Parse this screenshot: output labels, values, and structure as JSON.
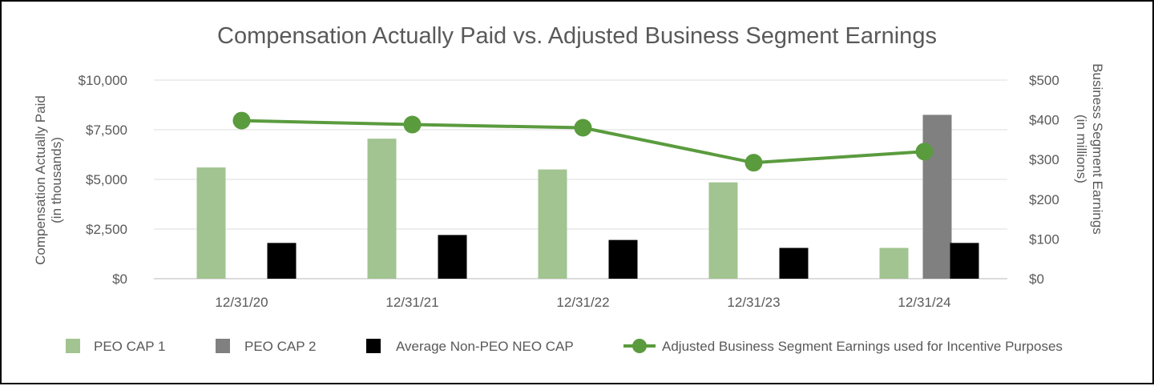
{
  "chart_data": {
    "type": "bar+line",
    "title": "Compensation Actually Paid vs. Adjusted Business Segment Earnings",
    "categories": [
      "12/31/20",
      "12/31/21",
      "12/31/22",
      "12/31/23",
      "12/31/24"
    ],
    "y_left": {
      "label_line1": "Compensation Actually Paid",
      "label_line2": "(in thousands)",
      "range": [
        0,
        10000
      ],
      "ticks": [
        0,
        2500,
        5000,
        7500,
        10000
      ],
      "tick_labels": [
        "$0",
        "$2,500",
        "$5,000",
        "$7,500",
        "$10,000"
      ]
    },
    "y_right": {
      "label_line1": "Business Segment Earnings",
      "label_line2": "(in millions)",
      "range": [
        0,
        500
      ],
      "ticks": [
        0,
        100,
        200,
        300,
        400,
        500
      ],
      "tick_labels": [
        "$0",
        "$100",
        "$200",
        "$300",
        "$400",
        "$500"
      ]
    },
    "series": [
      {
        "name": "PEO CAP 1",
        "kind": "bar",
        "axis": "left",
        "color": "#a1c490",
        "values": [
          5600,
          7050,
          5500,
          4850,
          1550
        ]
      },
      {
        "name": "PEO CAP 2",
        "kind": "bar",
        "axis": "left",
        "color": "#808080",
        "values": [
          null,
          null,
          null,
          null,
          8250
        ]
      },
      {
        "name": "Average Non-PEO NEO CAP",
        "kind": "bar",
        "axis": "left",
        "color": "#000000",
        "values": [
          1800,
          2200,
          1950,
          1550,
          1800
        ]
      },
      {
        "name": "Adjusted Business Segment Earnings used for Incentive Purposes",
        "kind": "line",
        "axis": "right",
        "color": "#5a9b3e",
        "values": [
          398,
          388,
          380,
          292,
          320
        ]
      }
    ],
    "gridlines": true,
    "legend_position": "bottom"
  }
}
